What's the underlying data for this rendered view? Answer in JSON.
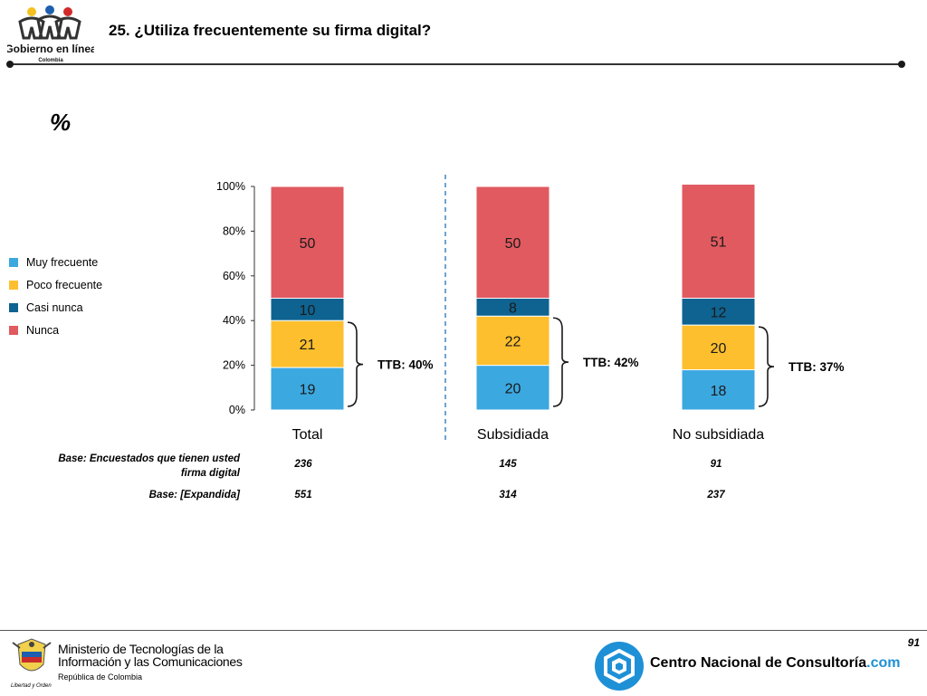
{
  "header": {
    "logo_line1": "Gobierno en línea",
    "logo_line2": "Colombia",
    "title": "25. ¿Utiliza frecuentemente su firma digital?"
  },
  "unit_label": "%",
  "colors": {
    "muy_frecuente": "#3ca8e0",
    "poco_frecuente": "#fdbf2d",
    "casi_nunca": "#0e6391",
    "nunca": "#e05a60",
    "ttb_divider": "#1e72b8",
    "accent": "#1e90d6"
  },
  "legend": [
    {
      "label": "Muy frecuente",
      "color": "#3ca8e0"
    },
    {
      "label": "Poco frecuente",
      "color": "#fdbf2d"
    },
    {
      "label": "Casi nunca",
      "color": "#0e6391"
    },
    {
      "label": "Nunca",
      "color": "#e05a60"
    }
  ],
  "chart_data": {
    "type": "bar",
    "stacked": true,
    "categories": [
      "Total",
      "Subsidiada",
      "No subsidiada"
    ],
    "series": [
      {
        "name": "Muy frecuente",
        "values": [
          19,
          20,
          18
        ]
      },
      {
        "name": "Poco frecuente",
        "values": [
          21,
          22,
          20
        ]
      },
      {
        "name": "Casi nunca",
        "values": [
          10,
          8,
          12
        ]
      },
      {
        "name": "Nunca",
        "values": [
          50,
          50,
          51
        ]
      }
    ],
    "ylim": [
      0,
      100
    ],
    "yticks": [
      "0%",
      "20%",
      "40%",
      "60%",
      "80%",
      "100%"
    ],
    "ttb": [
      "TTB: 40%",
      "TTB: 42%",
      "TTB: 37%"
    ],
    "legend_position": "left"
  },
  "base_table": {
    "row1_label_line1": "Base: Encuestados que tienen usted",
    "row1_label_line2": "firma digital",
    "row1_values": [
      "236",
      "145",
      "91"
    ],
    "row2_label": "Base: [Expandida]",
    "row2_values": [
      "551",
      "314",
      "237"
    ]
  },
  "footer": {
    "page_number": "91",
    "ministry_line1": "Ministerio de Tecnologías de la",
    "ministry_line2": "Información y las Comunicaciones",
    "ministry_sub": "República de Colombia",
    "seal_caption": "Libertad y Orden",
    "cnc_name": "Centro Nacional de Consultoría",
    "cnc_suffix": ".com"
  }
}
